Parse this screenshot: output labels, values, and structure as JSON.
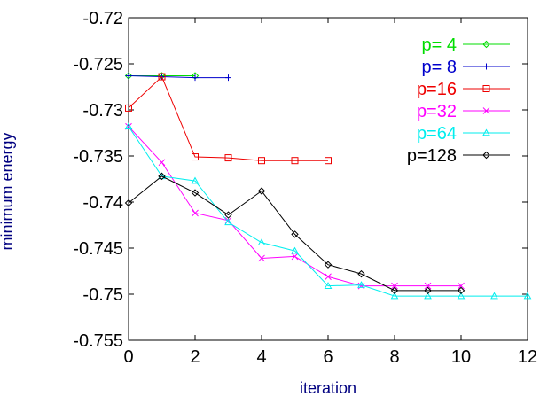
{
  "chart_data": {
    "type": "line",
    "title": "",
    "xlabel": "iteration",
    "ylabel": "minimum energy",
    "xlim": [
      0,
      12
    ],
    "ylim": [
      -0.755,
      -0.72
    ],
    "x_ticks": [
      "0",
      "2",
      "4",
      "6",
      "8",
      "10",
      "12"
    ],
    "y_ticks": [
      "-0.72",
      "-0.725",
      "-0.73",
      "-0.735",
      "-0.74",
      "-0.745",
      "-0.75",
      "-0.755"
    ],
    "grid": false,
    "legend_position": "top-right",
    "series": [
      {
        "name": "p= 4",
        "color": "#00dd00",
        "marker": "diamond",
        "points": [
          [
            0,
            -0.7263
          ],
          [
            1,
            -0.7263
          ],
          [
            2,
            -0.7263
          ]
        ]
      },
      {
        "name": "p= 8",
        "color": "#0000cc",
        "marker": "plus",
        "points": [
          [
            0,
            -0.7263
          ],
          [
            1,
            -0.7264
          ],
          [
            2,
            -0.7265
          ],
          [
            3,
            -0.7265
          ]
        ]
      },
      {
        "name": "p=16",
        "color": "#ee0000",
        "marker": "square",
        "points": [
          [
            0,
            -0.7298
          ],
          [
            1,
            -0.7264
          ],
          [
            2,
            -0.7351
          ],
          [
            3,
            -0.7352
          ],
          [
            4,
            -0.7355
          ],
          [
            5,
            -0.7355
          ],
          [
            6,
            -0.7355
          ]
        ]
      },
      {
        "name": "p=32",
        "color": "#ff00ff",
        "marker": "x",
        "points": [
          [
            0,
            -0.7318
          ],
          [
            1,
            -0.7357
          ],
          [
            2,
            -0.7412
          ],
          [
            3,
            -0.742
          ],
          [
            4,
            -0.7461
          ],
          [
            5,
            -0.7459
          ],
          [
            6,
            -0.7481
          ],
          [
            7,
            -0.7491
          ],
          [
            8,
            -0.7491
          ],
          [
            9,
            -0.7491
          ],
          [
            10,
            -0.7491
          ]
        ]
      },
      {
        "name": "p=64",
        "color": "#00eeee",
        "marker": "triangle",
        "points": [
          [
            0,
            -0.7318
          ],
          [
            1,
            -0.7372
          ],
          [
            2,
            -0.7377
          ],
          [
            3,
            -0.7422
          ],
          [
            4,
            -0.7444
          ],
          [
            5,
            -0.7453
          ],
          [
            6,
            -0.7491
          ],
          [
            7,
            -0.749
          ],
          [
            8,
            -0.7502
          ],
          [
            9,
            -0.7502
          ],
          [
            10,
            -0.7502
          ],
          [
            11,
            -0.7502
          ],
          [
            12,
            -0.7502
          ]
        ]
      },
      {
        "name": "p=128",
        "color": "#000000",
        "marker": "diamond",
        "points": [
          [
            0,
            -0.7401
          ],
          [
            1,
            -0.7372
          ],
          [
            2,
            -0.739
          ],
          [
            3,
            -0.7414
          ],
          [
            4,
            -0.7388
          ],
          [
            5,
            -0.7435
          ],
          [
            6,
            -0.7468
          ],
          [
            7,
            -0.7478
          ],
          [
            8,
            -0.7496
          ],
          [
            9,
            -0.7496
          ],
          [
            10,
            -0.7496
          ]
        ]
      }
    ]
  }
}
